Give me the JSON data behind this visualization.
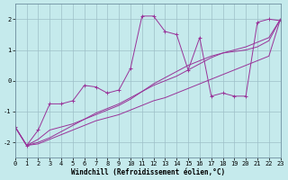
{
  "x": [
    0,
    1,
    2,
    3,
    4,
    5,
    6,
    7,
    8,
    9,
    10,
    11,
    12,
    13,
    14,
    15,
    16,
    17,
    18,
    19,
    20,
    21,
    22,
    23
  ],
  "line1": [
    -1.5,
    -2.1,
    -2.05,
    -1.9,
    -1.75,
    -1.6,
    -1.45,
    -1.3,
    -1.2,
    -1.1,
    -0.95,
    -0.8,
    -0.65,
    -0.55,
    -0.4,
    -0.25,
    -0.1,
    0.05,
    0.2,
    0.35,
    0.5,
    0.65,
    0.8,
    2.0
  ],
  "line2": [
    -1.5,
    -2.1,
    -2.0,
    -1.85,
    -1.65,
    -1.45,
    -1.25,
    -1.05,
    -0.9,
    -0.75,
    -0.55,
    -0.35,
    -0.15,
    0.0,
    0.15,
    0.35,
    0.55,
    0.75,
    0.9,
    1.0,
    1.1,
    1.25,
    1.4,
    2.0
  ],
  "line3": [
    -1.5,
    -2.1,
    -1.9,
    -1.6,
    -1.5,
    -1.4,
    -1.25,
    -1.1,
    -0.95,
    -0.8,
    -0.6,
    -0.35,
    -0.1,
    0.1,
    0.3,
    0.5,
    0.65,
    0.8,
    0.9,
    0.95,
    1.0,
    1.1,
    1.3,
    2.0
  ],
  "line4": [
    -1.5,
    -2.1,
    -1.6,
    -0.75,
    -0.75,
    -0.65,
    -0.15,
    -0.2,
    -0.4,
    -0.3,
    0.4,
    2.1,
    2.1,
    1.6,
    1.5,
    0.35,
    1.4,
    -0.5,
    -0.4,
    -0.5,
    -0.5,
    1.9,
    2.0,
    1.95
  ],
  "color": "#993399",
  "bg_color": "#c5eaec",
  "grid_color": "#9dbfc8",
  "xlabel": "Windchill (Refroidissement éolien,°C)",
  "ylim": [
    -2.5,
    2.5
  ],
  "xlim": [
    0,
    23
  ],
  "yticks": [
    -2,
    -1,
    0,
    1,
    2
  ],
  "xticks": [
    0,
    1,
    2,
    3,
    4,
    5,
    6,
    7,
    8,
    9,
    10,
    11,
    12,
    13,
    14,
    15,
    16,
    17,
    18,
    19,
    20,
    21,
    22,
    23
  ]
}
